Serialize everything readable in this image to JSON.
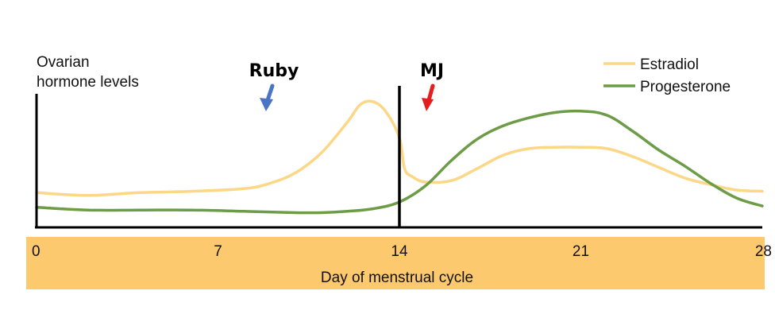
{
  "chart_data": {
    "type": "line",
    "ylabel_lines": [
      "Ovarian",
      "hormone levels"
    ],
    "xlabel": "Day of menstrual cycle",
    "xlim": [
      0,
      28
    ],
    "ylim": [
      0,
      100
    ],
    "xticks": [
      "0",
      "7",
      "14",
      "21",
      "28"
    ],
    "legend_position": "top-right",
    "series": [
      {
        "name": "Estradiol",
        "color": "#fbd787",
        "points": [
          [
            0,
            26
          ],
          [
            2,
            24
          ],
          [
            4,
            26
          ],
          [
            6,
            27
          ],
          [
            8,
            29
          ],
          [
            9,
            33
          ],
          [
            10,
            41
          ],
          [
            11,
            56
          ],
          [
            12,
            79
          ],
          [
            12.5,
            92
          ],
          [
            13,
            94
          ],
          [
            13.5,
            86
          ],
          [
            14,
            67
          ],
          [
            14.2,
            44
          ],
          [
            14.5,
            38
          ],
          [
            15,
            34
          ],
          [
            16,
            35
          ],
          [
            17,
            44
          ],
          [
            18,
            54
          ],
          [
            19,
            59
          ],
          [
            20,
            60
          ],
          [
            21,
            60
          ],
          [
            22,
            59
          ],
          [
            23,
            53
          ],
          [
            24,
            45
          ],
          [
            25,
            37
          ],
          [
            26,
            32
          ],
          [
            27,
            28
          ],
          [
            28,
            27
          ]
        ]
      },
      {
        "name": "Progesterone",
        "color": "#6d9c47",
        "points": [
          [
            0,
            15
          ],
          [
            2,
            13
          ],
          [
            4,
            13
          ],
          [
            6,
            13
          ],
          [
            8,
            12
          ],
          [
            10,
            11
          ],
          [
            11,
            11
          ],
          [
            12,
            12
          ],
          [
            13,
            14
          ],
          [
            14,
            19
          ],
          [
            15,
            31
          ],
          [
            16,
            50
          ],
          [
            17,
            66
          ],
          [
            18,
            76
          ],
          [
            19,
            82
          ],
          [
            20,
            86
          ],
          [
            21,
            87
          ],
          [
            22,
            84
          ],
          [
            23,
            72
          ],
          [
            24,
            58
          ],
          [
            25,
            46
          ],
          [
            26,
            33
          ],
          [
            27,
            22
          ],
          [
            28,
            16
          ]
        ]
      }
    ],
    "vline_x": 14,
    "annotations": [
      {
        "label": "Ruby",
        "arrow_color": "#4a74c4"
      },
      {
        "label": "MJ",
        "arrow_color": "#e41e1e"
      }
    ],
    "xaxis_band_color": "#fcc96e"
  }
}
